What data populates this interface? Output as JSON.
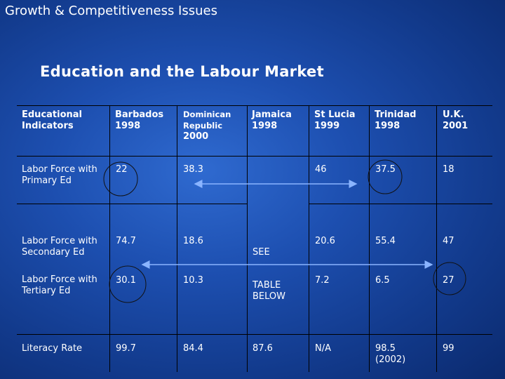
{
  "slide": {
    "header_title": "Growth & Competitiveness Issues",
    "title": "Education and the Labour Market"
  },
  "table": {
    "headers": [
      {
        "line1": "Educational",
        "line2": "Indicators",
        "line3": ""
      },
      {
        "line1": "Barbados",
        "line2": "1998",
        "line3": ""
      },
      {
        "line1": "Dominican",
        "line2": "Republic",
        "line3": "2000"
      },
      {
        "line1": "Jamaica",
        "line2": "1998",
        "line3": ""
      },
      {
        "line1": "St Lucia",
        "line2": "1999",
        "line3": ""
      },
      {
        "line1": "Trinidad",
        "line2": "1998",
        "line3": ""
      },
      {
        "line1": "U.K.",
        "line2": "2001",
        "line3": ""
      }
    ],
    "rows": [
      {
        "label1": "Labor Force with",
        "label2": "Primary Ed",
        "values": [
          "22",
          "38.3",
          "",
          "46",
          "37.5",
          "18"
        ]
      },
      {
        "label1": "Labor Force with",
        "label2": "Secondary Ed",
        "values": [
          "74.7",
          "18.6",
          "SEE",
          "20.6",
          "55.4",
          "47"
        ]
      },
      {
        "label1": "Labor Force with",
        "label2": "Tertiary Ed",
        "values": [
          "30.1",
          "10.3",
          "TABLE BELOW",
          "7.2",
          "6.5",
          "27"
        ]
      },
      {
        "label1": "Literacy Rate",
        "label2": "",
        "values": [
          "99.7",
          "84.4",
          "87.6",
          "N/A",
          "98.5",
          "99"
        ],
        "trinidad_note": "(2002)"
      }
    ]
  }
}
